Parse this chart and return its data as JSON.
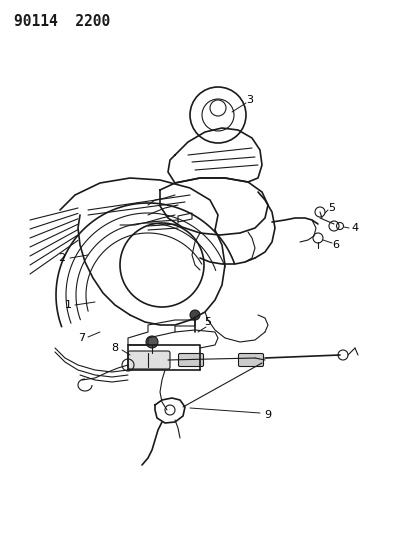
{
  "title": "90114  2200",
  "background_color": "#ffffff",
  "line_color": "#1a1a1a",
  "label_color": "#000000",
  "label_fontsize": 8.0,
  "title_fontsize": 10.5,
  "figsize": [
    3.98,
    5.33
  ],
  "dpi": 100
}
